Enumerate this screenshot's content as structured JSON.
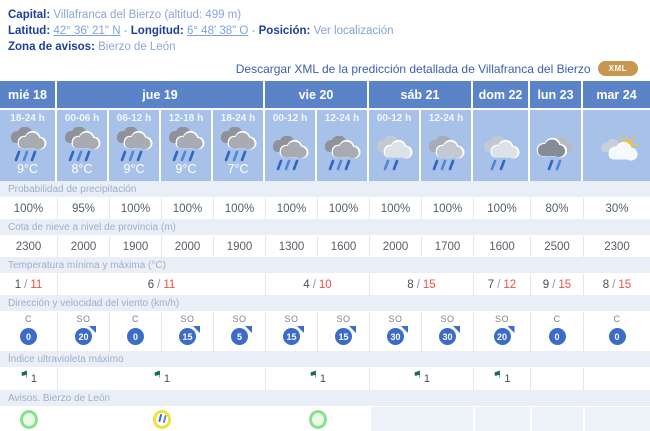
{
  "info": {
    "capital_label": "Capital:",
    "capital_value": "Villafranca del Bierzo (altitud: 499 m)",
    "latitud_label": "Latitud:",
    "latitud_value": "42° 36' 21\" N",
    "longitud_label": "Longitud:",
    "longitud_value": "6° 48' 38\" O",
    "posicion_label": "Posición:",
    "posicion_value": "Ver localización",
    "zona_label": "Zona de avisos:",
    "zona_value": "Bierzo de León",
    "separator": "-"
  },
  "xml": {
    "text": "Descargar XML de la predicción detallada de Villafranca del Bierzo",
    "badge": "XML",
    "badge_color": "#c99650"
  },
  "colors": {
    "day_header_bg": "#5b83c7",
    "subheader_bg": "#a8c1e8",
    "label_row_bg": "#e9eef7",
    "temp_max_red": "#ea5045",
    "wind_circle_blue": "#3b6cc9",
    "uv_flag_green": "#1e6e46",
    "aviso_green": "#8be08c",
    "aviso_yellow": "#f2e03c"
  },
  "icons": {
    "rain_dark": {
      "back": "#8f9298",
      "front": "#a8abb1",
      "drops": [
        "#2f66c0",
        "#4f86d8",
        "#2f66c0"
      ]
    },
    "rain_medium": {
      "back": "#a6acb5",
      "front": "#c3c9d1",
      "drops": [
        "#2f66c0",
        "#4f86d8",
        "#2f66c0"
      ]
    },
    "rain_light": {
      "back": "#c3c9d2",
      "front": "#dde2e9",
      "drops": [
        "#4f86d8",
        "#2f66c0"
      ]
    },
    "rain_dark2": {
      "back": "#b5bbc4",
      "front": "#868c95",
      "drops": [
        "#2f66c0",
        "#4f86d8"
      ]
    },
    "sun_cloud": {
      "sun": "#f4c33c",
      "back": "#c9cfd8",
      "front": "#f5f8fc"
    }
  },
  "table": {
    "days": [
      {
        "label": "mié 18",
        "span": 1
      },
      {
        "label": "jue 19",
        "span": 4
      },
      {
        "label": "vie 20",
        "span": 2
      },
      {
        "label": "sáb 21",
        "span": 2
      },
      {
        "label": "dom 22",
        "span": 1
      },
      {
        "label": "lun 23",
        "span": 1
      },
      {
        "label": "mar 24",
        "span": 1
      }
    ],
    "columns": [
      {
        "period": "18-24 h",
        "icon": "rain_dark",
        "temp": "9°C"
      },
      {
        "period": "00-06 h",
        "icon": "rain_dark",
        "temp": "8°C"
      },
      {
        "period": "06-12 h",
        "icon": "rain_dark",
        "temp": "9°C"
      },
      {
        "period": "12-18 h",
        "icon": "rain_dark",
        "temp": "9°C"
      },
      {
        "period": "18-24 h",
        "icon": "rain_dark",
        "temp": "7°C"
      },
      {
        "period": "00-12 h",
        "icon": "rain_dark",
        "temp": ""
      },
      {
        "period": "12-24 h",
        "icon": "rain_dark",
        "temp": ""
      },
      {
        "period": "00-12 h",
        "icon": "rain_light",
        "temp": ""
      },
      {
        "period": "12-24 h",
        "icon": "rain_medium",
        "temp": ""
      },
      {
        "period": "",
        "icon": "rain_light",
        "temp": ""
      },
      {
        "period": "",
        "icon": "rain_dark2",
        "temp": ""
      },
      {
        "period": "",
        "icon": "sun_cloud",
        "temp": ""
      }
    ],
    "rows": {
      "precip": {
        "label": "Probabilidad de precipitación",
        "values": [
          "100%",
          "95%",
          "100%",
          "100%",
          "100%",
          "100%",
          "100%",
          "100%",
          "100%",
          "100%",
          "80%",
          "30%"
        ]
      },
      "snow": {
        "label": "Cota de nieve a nivel de provincia (m)",
        "values": [
          "2300",
          "2000",
          "1900",
          "2000",
          "1900",
          "1300",
          "1600",
          "2000",
          "1700",
          "1600",
          "2500",
          "2300"
        ]
      },
      "temp": {
        "label": "Temperatura mínima y máxima (°C)",
        "separator": "/",
        "values": [
          {
            "min": "1",
            "max": "11"
          },
          {
            "min": "6",
            "max": "11"
          },
          {
            "min": "4",
            "max": "10"
          },
          {
            "min": "8",
            "max": "15"
          },
          {
            "min": "7",
            "max": "12"
          },
          {
            "min": "9",
            "max": "15"
          },
          {
            "min": "8",
            "max": "15"
          }
        ]
      },
      "wind": {
        "label": "Dirección y velocidad del viento (km/h)",
        "values": [
          {
            "dir": "C",
            "speed": "0"
          },
          {
            "dir": "SO",
            "speed": "20"
          },
          {
            "dir": "C",
            "speed": "0"
          },
          {
            "dir": "SO",
            "speed": "15"
          },
          {
            "dir": "SO",
            "speed": "5"
          },
          {
            "dir": "SO",
            "speed": "15"
          },
          {
            "dir": "SO",
            "speed": "15"
          },
          {
            "dir": "SO",
            "speed": "30"
          },
          {
            "dir": "SO",
            "speed": "30"
          },
          {
            "dir": "SO",
            "speed": "20"
          },
          {
            "dir": "C",
            "speed": "0"
          },
          {
            "dir": "C",
            "speed": "0"
          }
        ]
      },
      "uv": {
        "label": "Índice ultravioleta máximo",
        "flag_icon": "⚑",
        "values": [
          "1",
          "1",
          "1",
          "1",
          "1",
          "",
          ""
        ]
      },
      "avisos": {
        "label": "Avisos. Bierzo de León",
        "values": [
          "green",
          "yellow_rain",
          "green",
          "none",
          "none",
          "none",
          "none"
        ]
      }
    }
  }
}
